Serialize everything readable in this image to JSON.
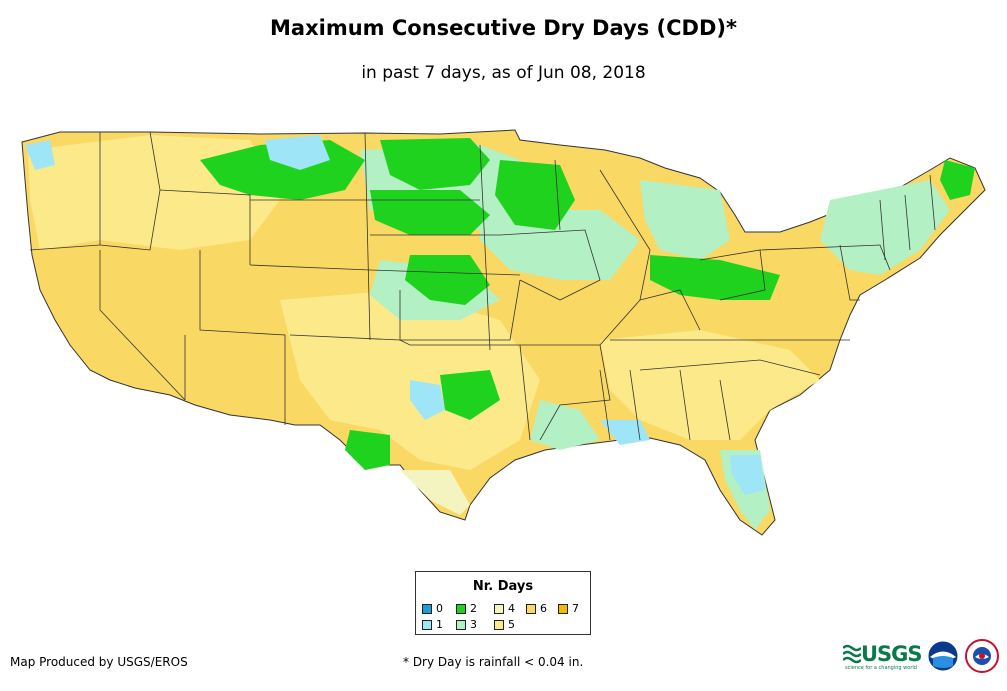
{
  "title": "Maximum Consecutive Dry Days (CDD)*",
  "subtitle": "in past 7 days, as of Jun 08, 2018",
  "legend": {
    "title": "Nr. Days",
    "items": [
      {
        "label": "0",
        "color": "#1f9bd8"
      },
      {
        "label": "1",
        "color": "#9ee6f7"
      },
      {
        "label": "2",
        "color": "#1ed21e"
      },
      {
        "label": "3",
        "color": "#b3f0c3"
      },
      {
        "label": "4",
        "color": "#f4f4c0"
      },
      {
        "label": "5",
        "color": "#fbe98a"
      },
      {
        "label": "6",
        "color": "#fad864"
      },
      {
        "label": "7",
        "color": "#f4b800"
      }
    ]
  },
  "credit": "Map Produced by USGS/EROS",
  "footnote": "* Dry Day is rainfall < 0.04 in.",
  "logos": {
    "usgs": "USGS",
    "usgs_tagline": "science for a changing world",
    "noaa_icon": "noaa-logo-icon",
    "nws_icon": "nws-logo-icon"
  }
}
